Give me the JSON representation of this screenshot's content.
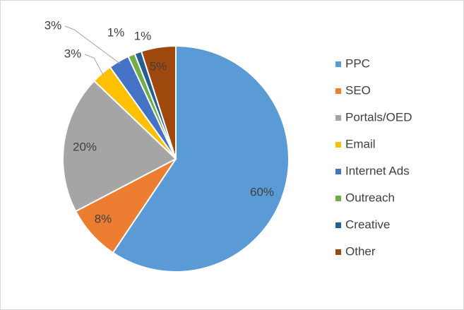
{
  "chart_data": {
    "type": "pie",
    "categories": [
      "PPC",
      "SEO",
      "Portals/OED",
      "Email",
      "Internet Ads",
      "Outreach",
      "Creative",
      "Other"
    ],
    "values": [
      60,
      8,
      20,
      3,
      3,
      1,
      1,
      5
    ],
    "value_labels": [
      "60%",
      "8%",
      "20%",
      "3%",
      "3%",
      "1%",
      "1%",
      "5%"
    ],
    "colors": [
      "#5b9bd5",
      "#ed7d31",
      "#a5a5a5",
      "#ffc000",
      "#4472c4",
      "#70ad47",
      "#255e91",
      "#9e480e"
    ],
    "legend": "right"
  }
}
